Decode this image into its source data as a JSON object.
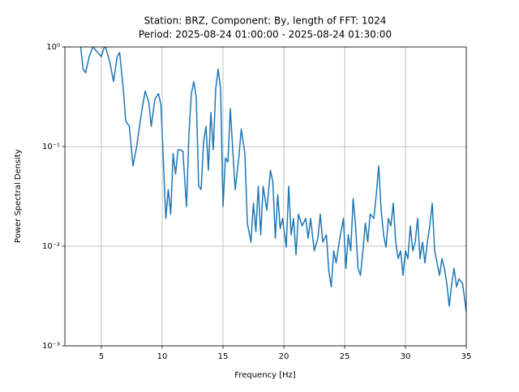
{
  "chart_data": {
    "type": "line",
    "title": [
      "Station: BRZ, Component: By, length of FFT: 1024",
      "Period: 2025-08-24 01:00:00 - 2025-08-24 01:30:00"
    ],
    "xlabel": "Frequency [Hz]",
    "ylabel": "Power Spectral Density",
    "xlim": [
      2,
      35
    ],
    "xticks": [
      5,
      10,
      15,
      20,
      25,
      30,
      35
    ],
    "ylim": [
      0.001,
      1
    ],
    "yscale": "log",
    "yticks": [
      {
        "value": 0.001,
        "label": "10⁻³"
      },
      {
        "value": 0.01,
        "label": "10⁻²"
      },
      {
        "value": 0.1,
        "label": "10⁻¹"
      },
      {
        "value": 1,
        "label": "10⁰"
      }
    ],
    "grid": true,
    "series": [
      {
        "color": "#1f77b4",
        "x": [
          3.1,
          3.3,
          3.5,
          3.7,
          4,
          4.3,
          4.7,
          5,
          5.3,
          5.7,
          6,
          6.3,
          6.5,
          6.8,
          7,
          7.3,
          7.6,
          7.9,
          8.3,
          8.6,
          8.9,
          9.1,
          9.4,
          9.7,
          9.9,
          10.1,
          10.3,
          10.5,
          10.7,
          10.9,
          11.1,
          11.3,
          11.5,
          11.7,
          12,
          12.2,
          12.4,
          12.6,
          12.8,
          13,
          13.2,
          13.4,
          13.6,
          13.8,
          14,
          14.2,
          14.4,
          14.6,
          14.8,
          15,
          15.2,
          15.4,
          15.6,
          15.8,
          16,
          16.3,
          16.5,
          16.8,
          17,
          17.3,
          17.5,
          17.7,
          17.9,
          18.1,
          18.3,
          18.6,
          18.9,
          19.1,
          19.3,
          19.5,
          19.7,
          19.9,
          20.2,
          20.4,
          20.6,
          20.8,
          21,
          21.2,
          21.5,
          21.8,
          22,
          22.2,
          22.5,
          22.8,
          23,
          23.2,
          23.5,
          23.7,
          23.9,
          24.1,
          24.3,
          24.6,
          24.9,
          25.1,
          25.3,
          25.5,
          25.7,
          25.9,
          26.1,
          26.3,
          26.5,
          26.7,
          26.9,
          27.1,
          27.4,
          27.6,
          27.8,
          28,
          28.2,
          28.4,
          28.6,
          28.8,
          29,
          29.2,
          29.4,
          29.6,
          29.8,
          30,
          30.2,
          30.4,
          30.6,
          30.8,
          31,
          31.2,
          31.4,
          31.6,
          31.8,
          32,
          32.2,
          32.4,
          32.6,
          32.8,
          33,
          33.2,
          33.4,
          33.6,
          33.8,
          34,
          34.2,
          34.4,
          34.7,
          35
        ],
        "values": [
          1.3,
          1.0,
          0.6,
          0.55,
          0.8,
          1.0,
          0.88,
          0.8,
          1.05,
          0.7,
          0.45,
          0.8,
          0.88,
          0.38,
          0.18,
          0.16,
          0.064,
          0.1,
          0.22,
          0.36,
          0.28,
          0.16,
          0.3,
          0.34,
          0.26,
          0.07,
          0.019,
          0.037,
          0.021,
          0.085,
          0.053,
          0.093,
          0.093,
          0.09,
          0.025,
          0.135,
          0.34,
          0.45,
          0.31,
          0.04,
          0.037,
          0.11,
          0.16,
          0.058,
          0.22,
          0.093,
          0.38,
          0.6,
          0.38,
          0.025,
          0.077,
          0.07,
          0.24,
          0.093,
          0.037,
          0.077,
          0.15,
          0.085,
          0.017,
          0.011,
          0.027,
          0.014,
          0.04,
          0.013,
          0.04,
          0.023,
          0.058,
          0.044,
          0.012,
          0.033,
          0.015,
          0.019,
          0.0098,
          0.04,
          0.013,
          0.019,
          0.0082,
          0.021,
          0.016,
          0.019,
          0.012,
          0.019,
          0.009,
          0.012,
          0.021,
          0.011,
          0.013,
          0.0056,
          0.0039,
          0.009,
          0.0068,
          0.012,
          0.019,
          0.006,
          0.013,
          0.009,
          0.03,
          0.016,
          0.006,
          0.0051,
          0.009,
          0.017,
          0.011,
          0.021,
          0.019,
          0.033,
          0.064,
          0.023,
          0.013,
          0.0098,
          0.019,
          0.016,
          0.027,
          0.011,
          0.0075,
          0.009,
          0.0051,
          0.009,
          0.0075,
          0.016,
          0.009,
          0.011,
          0.019,
          0.0075,
          0.011,
          0.0068,
          0.011,
          0.016,
          0.027,
          0.009,
          0.0068,
          0.0051,
          0.0075,
          0.006,
          0.0042,
          0.0025,
          0.0042,
          0.006,
          0.0039,
          0.0047,
          0.0042,
          0.0022
        ]
      }
    ]
  }
}
